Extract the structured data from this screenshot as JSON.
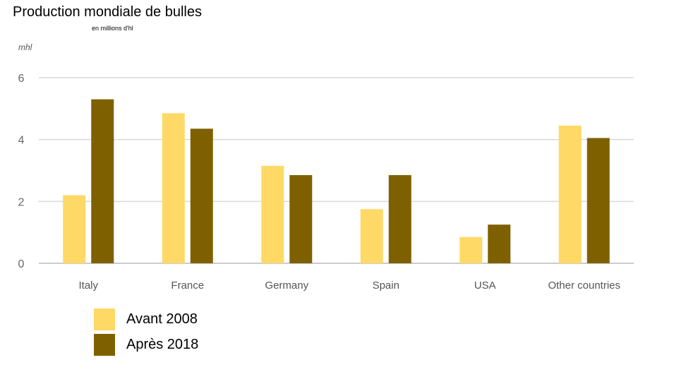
{
  "chart_data": {
    "type": "bar",
    "title": "Production mondiale de bulles",
    "subtitle": "en millions d'hl",
    "ylabel": "mhl",
    "ylim": [
      0,
      6
    ],
    "yticks": [
      0,
      2,
      4,
      6
    ],
    "grid": true,
    "legend_placement": "bottom-left",
    "categories": [
      "Italy",
      "France",
      "Germany",
      "Spain",
      "USA",
      "Other countries"
    ],
    "series": [
      {
        "name": "Avant 2008",
        "color": "#FFD966",
        "values": [
          2.2,
          4.85,
          3.15,
          1.75,
          0.85,
          4.45
        ]
      },
      {
        "name": "Après 2018",
        "color": "#7F6000",
        "values": [
          5.3,
          4.35,
          2.85,
          2.85,
          1.25,
          4.05
        ]
      }
    ]
  }
}
